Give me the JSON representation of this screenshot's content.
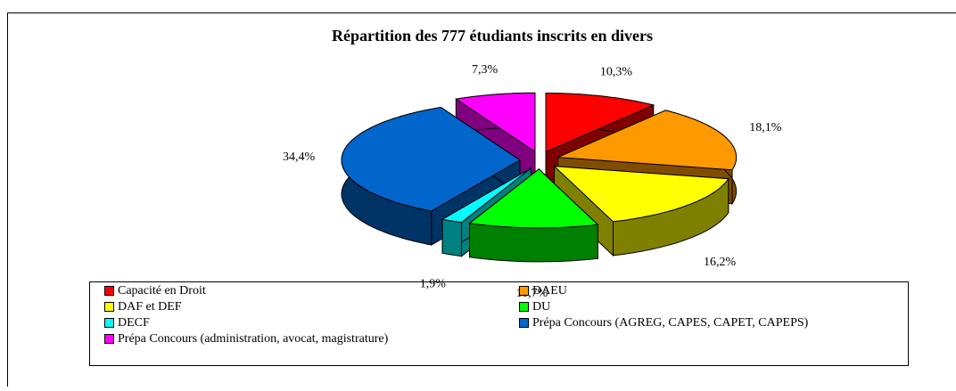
{
  "chart_data": {
    "type": "pie3d",
    "title": "Répartition des 777 étudiants inscrits en divers",
    "categories": [
      "Capacité en Droit",
      "DAEU",
      "DAF et DEF",
      "DU",
      "DECF",
      "Prépa Concours (AGREG, CAPES, CAPET, CAPEPS)",
      "Prépa Concours (administration, avocat, magistrature)"
    ],
    "values": [
      10.3,
      18.1,
      16.2,
      11.7,
      1.9,
      34.4,
      7.3
    ],
    "value_labels": [
      "10,3%",
      "18,1%",
      "16,2%",
      "11,7%",
      "1,9%",
      "34,4%",
      "7,3%"
    ],
    "colors": [
      "#ff0000",
      "#ff9900",
      "#ffff00",
      "#00ff00",
      "#00ffff",
      "#0066cc",
      "#ff00ff"
    ],
    "legend": "bottom"
  }
}
